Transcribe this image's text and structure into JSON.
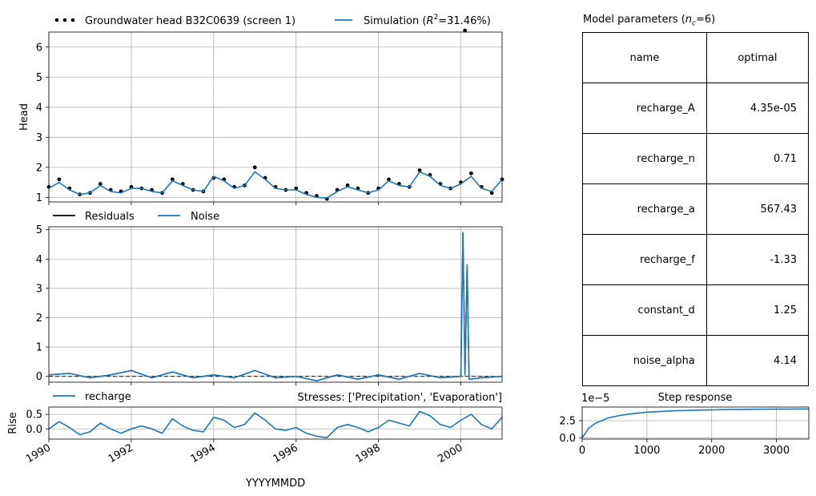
{
  "head_panel": {
    "ylabel": "Head",
    "yticks": [
      "1",
      "2",
      "3",
      "4",
      "5",
      "6"
    ],
    "legend": {
      "observed": "Groundwater head B32C0639 (screen 1)",
      "simulation_prefix": "Simulation (",
      "simulation_r2_symbol": "R",
      "simulation_r2_sup": "2",
      "simulation_r2_value": "=31.46%)"
    }
  },
  "residual_panel": {
    "yticks": [
      "0",
      "1",
      "2",
      "3",
      "4",
      "5"
    ],
    "legend": {
      "residuals": "Residuals",
      "noise": "Noise"
    }
  },
  "contrib_panel": {
    "ylabel": "Rise",
    "yticks": [
      "0.0",
      "0.5"
    ],
    "legend": {
      "recharge": "recharge"
    },
    "stresses_title": "Stresses: ['Precipitation', 'Evaporation']"
  },
  "time_axis": {
    "xlabel": "YYYYMMDD",
    "xticks": [
      "1990",
      "1992",
      "1994",
      "1996",
      "1998",
      "2000"
    ]
  },
  "step_panel": {
    "title": "Step response",
    "offset_label": "1e−5",
    "yticks": [
      "0.0",
      "2.5"
    ],
    "xticks": [
      "0",
      "1000",
      "2000",
      "3000"
    ]
  },
  "params_table": {
    "title_prefix": "Model parameters (",
    "title_symbol": "n",
    "title_sub": "c",
    "title_suffix": "=6)",
    "header": [
      "name",
      "optimal"
    ],
    "rows": [
      [
        "recharge_A",
        "4.35e-05"
      ],
      [
        "recharge_n",
        "0.71"
      ],
      [
        "recharge_a",
        "567.43"
      ],
      [
        "recharge_f",
        "-1.33"
      ],
      [
        "constant_d",
        "1.25"
      ],
      [
        "noise_alpha",
        "4.14"
      ]
    ]
  },
  "colors": {
    "simulation": "#1f77b4",
    "observed": "#000000",
    "grid": "#b0b0b0"
  },
  "chart_data": [
    {
      "type": "line",
      "panel": "head",
      "xlim": [
        1990.0,
        2001.0
      ],
      "ylim": [
        0.85,
        6.5
      ],
      "x": [
        1990.0,
        1990.25,
        1990.5,
        1990.75,
        1991.0,
        1991.25,
        1991.5,
        1991.75,
        1992.0,
        1992.25,
        1992.5,
        1992.75,
        1993.0,
        1993.25,
        1993.5,
        1993.75,
        1994.0,
        1994.25,
        1994.5,
        1994.75,
        1995.0,
        1995.25,
        1995.5,
        1995.75,
        1996.0,
        1996.25,
        1996.5,
        1996.75,
        1997.0,
        1997.25,
        1997.5,
        1997.75,
        1998.0,
        1998.25,
        1998.5,
        1998.75,
        1999.0,
        1999.25,
        1999.5,
        1999.75,
        2000.0,
        2000.25,
        2000.5,
        2000.75,
        2001.0
      ],
      "series": [
        {
          "name": "Groundwater head B32C0639 (screen 1)",
          "style": "points",
          "values": [
            1.35,
            1.6,
            1.3,
            1.1,
            1.15,
            1.45,
            1.25,
            1.2,
            1.35,
            1.3,
            1.25,
            1.15,
            1.6,
            1.45,
            1.25,
            1.2,
            1.65,
            1.6,
            1.35,
            1.4,
            2.0,
            1.65,
            1.35,
            1.25,
            1.3,
            1.15,
            1.05,
            0.95,
            1.25,
            1.4,
            1.3,
            1.15,
            1.3,
            1.6,
            1.45,
            1.35,
            1.9,
            1.75,
            1.45,
            1.3,
            1.5,
            1.8,
            1.35,
            1.15,
            1.6
          ],
          "outlier": {
            "x": 2000.1,
            "y": 6.55
          }
        },
        {
          "name": "Simulation",
          "style": "line",
          "values": [
            1.3,
            1.5,
            1.25,
            1.1,
            1.15,
            1.4,
            1.2,
            1.15,
            1.3,
            1.3,
            1.2,
            1.15,
            1.55,
            1.4,
            1.25,
            1.2,
            1.7,
            1.55,
            1.3,
            1.4,
            1.85,
            1.6,
            1.3,
            1.25,
            1.25,
            1.1,
            1.0,
            0.98,
            1.2,
            1.35,
            1.25,
            1.15,
            1.25,
            1.55,
            1.4,
            1.35,
            1.85,
            1.7,
            1.4,
            1.3,
            1.45,
            1.7,
            1.3,
            1.2,
            1.6
          ]
        }
      ]
    },
    {
      "type": "line",
      "panel": "residuals",
      "xlim": [
        1990.0,
        2001.0
      ],
      "ylim": [
        -0.2,
        5.1
      ],
      "x": [
        1990.0,
        1990.5,
        1991.0,
        1991.5,
        1992.0,
        1992.5,
        1993.0,
        1993.5,
        1994.0,
        1994.5,
        1995.0,
        1995.5,
        1996.0,
        1996.5,
        1997.0,
        1997.5,
        1998.0,
        1998.5,
        1999.0,
        1999.5,
        2000.0,
        2000.05,
        2000.1,
        2000.15,
        2000.2,
        2000.5,
        2001.0
      ],
      "series": [
        {
          "name": "Residuals",
          "values": [
            0.05,
            0.1,
            -0.05,
            0.05,
            0.2,
            -0.05,
            0.15,
            -0.05,
            0.05,
            -0.05,
            0.2,
            -0.05,
            0.0,
            -0.15,
            0.05,
            -0.1,
            0.05,
            -0.1,
            0.1,
            -0.05,
            0.0,
            4.9,
            0.05,
            3.8,
            -0.1,
            -0.05,
            0.0
          ]
        },
        {
          "name": "Noise",
          "values": [
            0.05,
            0.1,
            -0.05,
            0.05,
            0.2,
            -0.05,
            0.15,
            -0.05,
            0.05,
            -0.05,
            0.2,
            -0.05,
            0.0,
            -0.15,
            0.05,
            -0.1,
            0.05,
            -0.1,
            0.1,
            -0.05,
            0.0,
            4.9,
            0.05,
            3.8,
            -0.1,
            -0.05,
            0.0
          ]
        }
      ],
      "zero_line": true
    },
    {
      "type": "line",
      "panel": "contributions",
      "xlim": [
        1990.0,
        2001.0
      ],
      "ylim": [
        -0.35,
        0.75
      ],
      "x": [
        1990.0,
        1990.25,
        1990.5,
        1990.75,
        1991.0,
        1991.25,
        1991.5,
        1991.75,
        1992.0,
        1992.25,
        1992.5,
        1992.75,
        1993.0,
        1993.25,
        1993.5,
        1993.75,
        1994.0,
        1994.25,
        1994.5,
        1994.75,
        1995.0,
        1995.25,
        1995.5,
        1995.75,
        1996.0,
        1996.25,
        1996.5,
        1996.75,
        1997.0,
        1997.25,
        1997.5,
        1997.75,
        1998.0,
        1998.25,
        1998.5,
        1998.75,
        1999.0,
        1999.25,
        1999.5,
        1999.75,
        2000.0,
        2000.25,
        2000.5,
        2000.75,
        2001.0
      ],
      "series": [
        {
          "name": "recharge",
          "values": [
            0.0,
            0.25,
            0.05,
            -0.2,
            -0.1,
            0.2,
            0.0,
            -0.15,
            0.0,
            0.1,
            0.0,
            -0.15,
            0.35,
            0.1,
            -0.05,
            -0.1,
            0.4,
            0.3,
            0.05,
            0.15,
            0.55,
            0.3,
            0.0,
            -0.05,
            0.05,
            -0.15,
            -0.25,
            -0.3,
            0.05,
            0.15,
            0.05,
            -0.1,
            0.05,
            0.3,
            0.2,
            0.1,
            0.6,
            0.45,
            0.15,
            0.05,
            0.3,
            0.5,
            0.15,
            0.0,
            0.4
          ]
        }
      ]
    },
    {
      "type": "line",
      "panel": "step_response",
      "xlim": [
        0,
        3500
      ],
      "ylim": [
        -0.2,
        4.5
      ],
      "ylabel_scale": "1e-5",
      "x": [
        0,
        100,
        200,
        400,
        600,
        800,
        1000,
        1400,
        1800,
        2200,
        2600,
        3000,
        3500
      ],
      "series": [
        {
          "name": "recharge",
          "values": [
            0.0,
            1.4,
            2.1,
            2.9,
            3.3,
            3.55,
            3.75,
            3.95,
            4.05,
            4.12,
            4.17,
            4.2,
            4.22
          ]
        }
      ]
    }
  ]
}
